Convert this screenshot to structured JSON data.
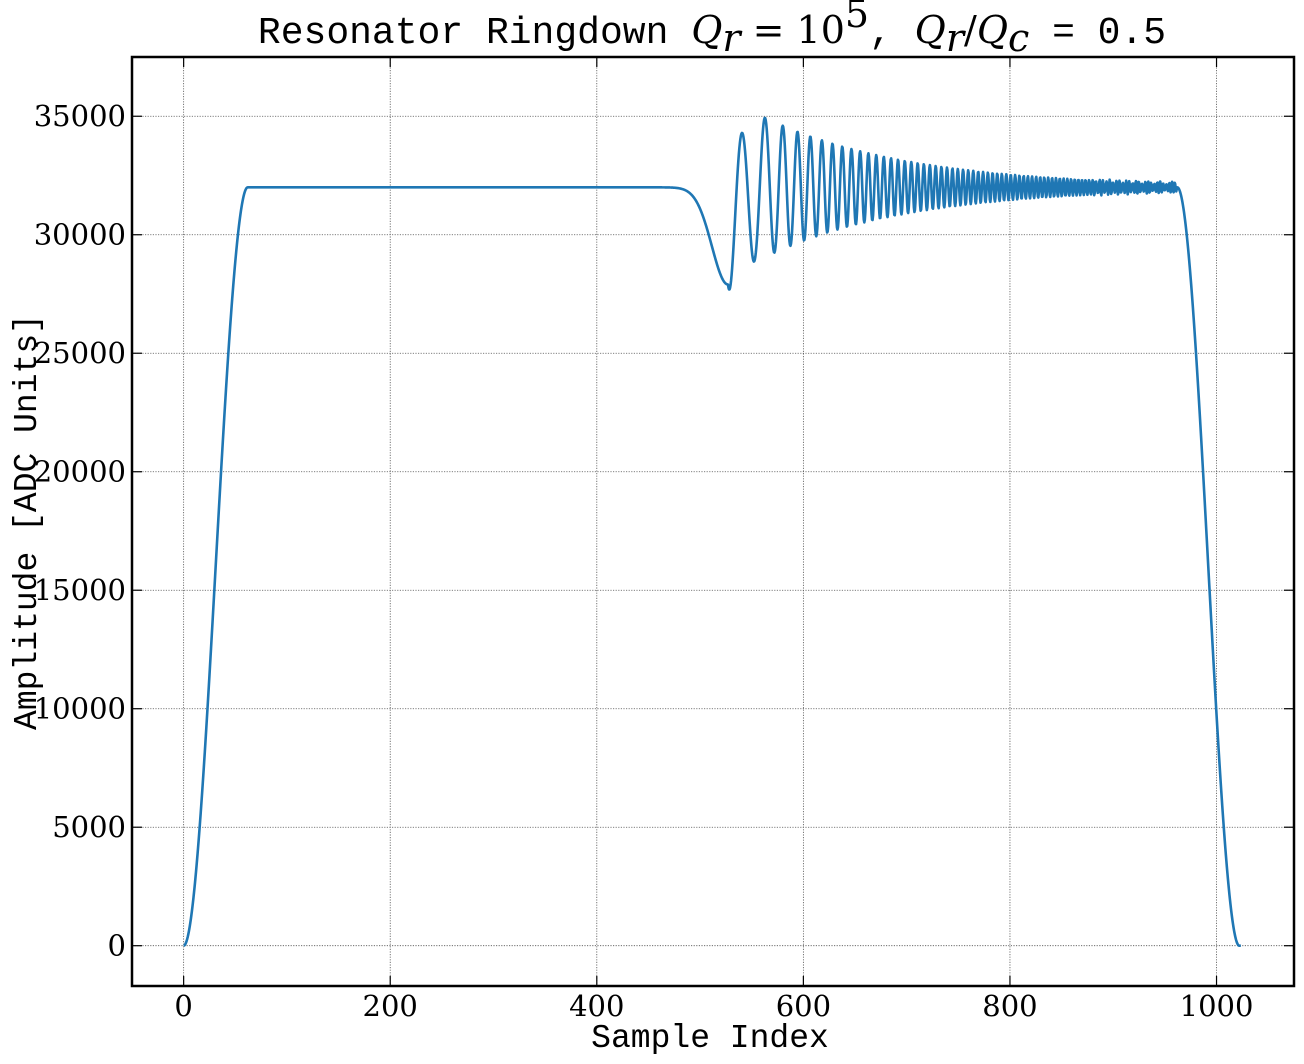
{
  "chart_data": {
    "type": "line",
    "title": {
      "prefix": "Resonator Ringdown ",
      "qr_symbol": "Q",
      "qr_sub": "r",
      "qr_equals": " = 10",
      "qr_exp": "5",
      "separator": ", ",
      "ratio_num": "Q",
      "ratio_num_sub": "r",
      "ratio_slash": "/",
      "ratio_den": "Q",
      "ratio_den_sub": "c",
      "ratio_value": " = 0.5"
    },
    "xlabel": "Sample Index",
    "ylabel": "Amplitude [ADC Units]",
    "xlim": [
      -50,
      1075
    ],
    "ylim": [
      -1700,
      37500
    ],
    "xticks": [
      0,
      200,
      400,
      600,
      800,
      1000
    ],
    "yticks": [
      0,
      5000,
      10000,
      15000,
      20000,
      25000,
      30000,
      35000
    ],
    "xtick_labels": [
      "0",
      "200",
      "400",
      "600",
      "800",
      "1000"
    ],
    "ytick_labels": [
      "0",
      "5000",
      "10000",
      "15000",
      "20000",
      "25000",
      "30000",
      "35000"
    ],
    "grid": true,
    "line_color": "#1f77b4",
    "series": [
      {
        "n_samples": 1024,
        "baseline": 32000,
        "rise_end": 62,
        "fall_start": 962,
        "fall_end": 1022,
        "dip_center": 527,
        "dip_depth": 4100,
        "first_peak_index": 548,
        "first_peak_value": 35750,
        "ringdown_end_index": 960
      }
    ]
  }
}
